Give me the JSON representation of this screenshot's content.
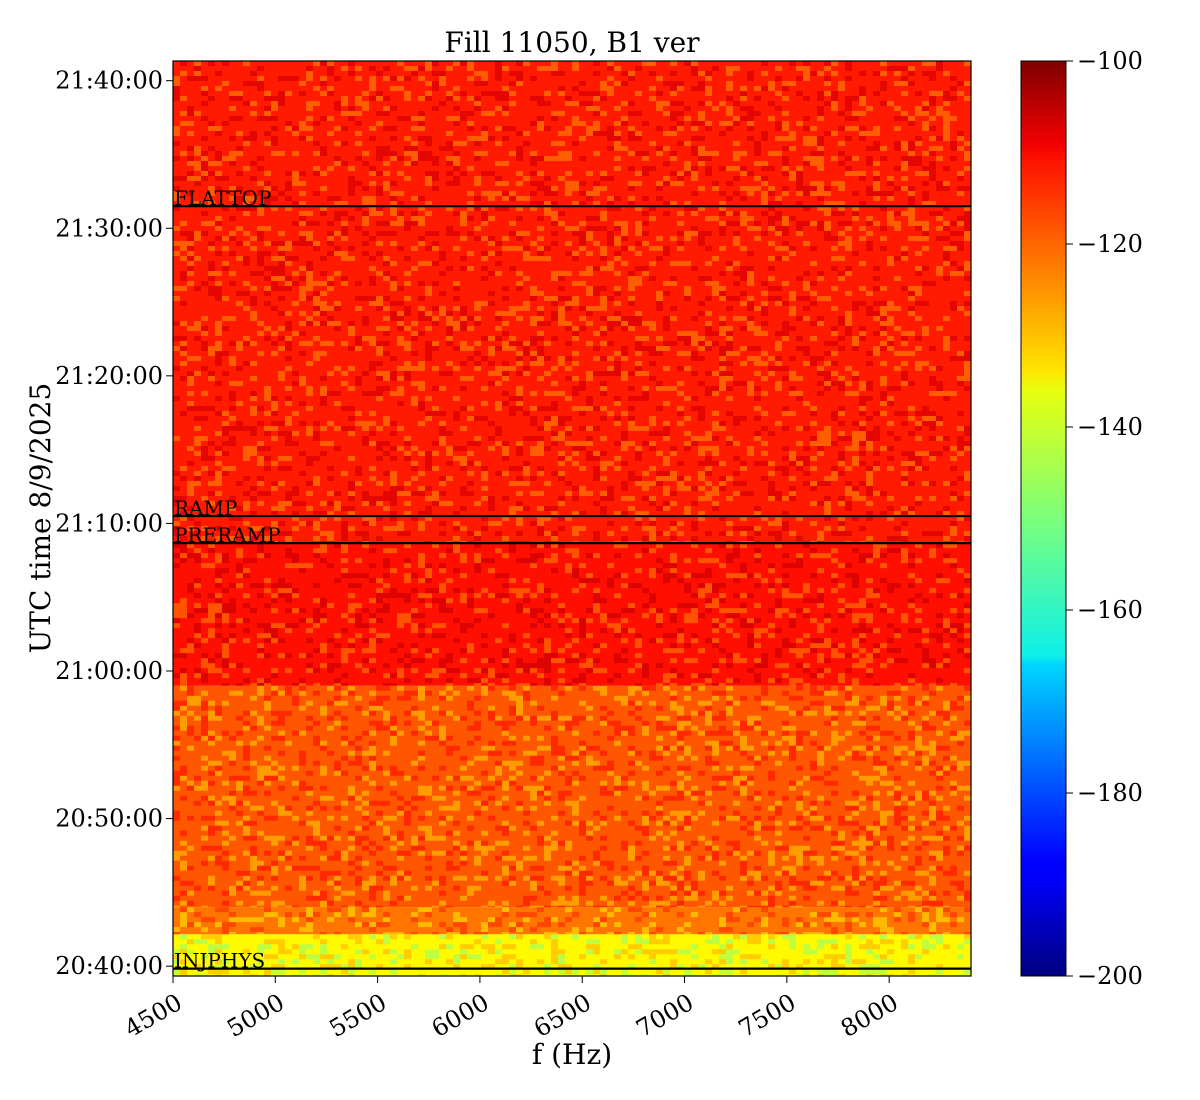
{
  "chart_data": {
    "type": "heatmap",
    "title": "Fill 11050, B1 ver",
    "xlabel": "f (Hz)",
    "ylabel": "UTC time 8/9/2025",
    "xlim": [
      4500,
      8400
    ],
    "ylim": [
      "20:39:20",
      "21:41:20"
    ],
    "x_ticks": [
      {
        "value": 4500,
        "label": "4500"
      },
      {
        "value": 5000,
        "label": "5000"
      },
      {
        "value": 5500,
        "label": "5500"
      },
      {
        "value": 6000,
        "label": "6000"
      },
      {
        "value": 6500,
        "label": "6500"
      },
      {
        "value": 7000,
        "label": "7000"
      },
      {
        "value": 7500,
        "label": "7500"
      },
      {
        "value": 8000,
        "label": "8000"
      }
    ],
    "y_ticks": [
      {
        "value": "20:40:00",
        "label": "20:40:00"
      },
      {
        "value": "20:50:00",
        "label": "20:50:00"
      },
      {
        "value": "21:00:00",
        "label": "21:00:00"
      },
      {
        "value": "21:10:00",
        "label": "21:10:00"
      },
      {
        "value": "21:20:00",
        "label": "21:20:00"
      },
      {
        "value": "21:30:00",
        "label": "21:30:00"
      },
      {
        "value": "21:40:00",
        "label": "21:40:00"
      }
    ],
    "colorbar": {
      "colormap": "jet",
      "range": [
        -200,
        -100
      ],
      "ticks": [
        {
          "value": -100,
          "label": "−100"
        },
        {
          "value": -120,
          "label": "−120"
        },
        {
          "value": -140,
          "label": "−140"
        },
        {
          "value": -160,
          "label": "−160"
        },
        {
          "value": -180,
          "label": "−180"
        },
        {
          "value": -200,
          "label": "−200"
        }
      ]
    },
    "events": [
      {
        "label": "INJPHYS",
        "time": "20:39:50"
      },
      {
        "label": "PRERAMP",
        "time": "21:08:40"
      },
      {
        "label": "RAMP",
        "time": "21:10:30"
      },
      {
        "label": "FLATTOP",
        "time": "21:31:30"
      }
    ],
    "bands": [
      {
        "start": "20:39:20",
        "end": "20:42:10",
        "level": -137
      },
      {
        "start": "20:42:10",
        "end": "20:44:00",
        "level": -124
      },
      {
        "start": "20:44:00",
        "end": "20:59:00",
        "level": -121
      },
      {
        "start": "20:59:00",
        "end": "21:08:40",
        "level": -114
      },
      {
        "start": "21:08:40",
        "end": "21:41:20",
        "level": -115
      }
    ],
    "grid": false
  }
}
